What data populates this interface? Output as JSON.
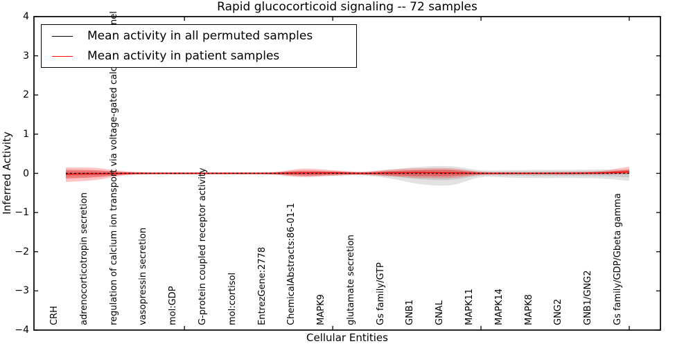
{
  "chart_data": {
    "type": "line",
    "title": "Rapid glucocorticoid signaling -- 72 samples",
    "xlabel": "Cellular Entities",
    "ylabel": "Inferred Activity",
    "ylim": [
      -4,
      4
    ],
    "yticks": [
      4,
      3,
      2,
      1,
      0,
      -1,
      -2,
      -3,
      -4
    ],
    "grid": false,
    "legend_position": "upper left",
    "categories": [
      "CRH",
      "adrenocorticotropin secretion",
      "regulation of calcium ion transport via voltage-gated calcium channel",
      "vasopressin secretion",
      "mol:GDP",
      "G-protein coupled receptor activity",
      "mol:cortisol",
      "EntrezGene:2778",
      "ChemicalAbstracts:86-01-1",
      "MAPK9",
      "glutamate secretion",
      "Gs family/GTP",
      "GNB1",
      "GNAL",
      "MAPK11",
      "MAPK14",
      "MAPK8",
      "GNG2",
      "GNB1/GNG2",
      "Gs family/GDP/Gbeta gamma"
    ],
    "series": [
      {
        "name": "Mean activity in all permuted samples",
        "color": "#000000",
        "line_style": "dashed",
        "values": [
          0,
          0,
          0,
          0,
          0,
          0,
          0,
          0,
          0,
          0,
          0,
          0,
          0,
          0,
          0,
          0,
          0,
          0,
          0,
          0
        ],
        "band_upper": [
          0.06,
          0.05,
          0.03,
          0.03,
          0.03,
          0.03,
          0.03,
          0.04,
          0.05,
          0.05,
          0.04,
          0.1,
          0.17,
          0.18,
          0.08,
          0.08,
          0.09,
          0.09,
          0.1,
          0.09
        ],
        "band_lower": [
          0.08,
          0.06,
          0.04,
          0.03,
          0.03,
          0.03,
          0.03,
          0.04,
          0.06,
          0.06,
          0.05,
          0.14,
          0.28,
          0.3,
          0.1,
          0.11,
          0.12,
          0.12,
          0.13,
          0.19
        ]
      },
      {
        "name": "Mean activity in patient samples",
        "color": "#ff0000",
        "line_style": "solid",
        "values": [
          -0.02,
          -0.01,
          0,
          0,
          0,
          0,
          0,
          0,
          0.01,
          0.01,
          0,
          0.01,
          0.02,
          0.01,
          0,
          0,
          0,
          0,
          0.01,
          0.04
        ],
        "band_upper": [
          0.15,
          0.14,
          0.05,
          0.025,
          0.025,
          0.025,
          0.025,
          0.03,
          0.12,
          0.08,
          0.04,
          0.1,
          0.13,
          0.13,
          0.04,
          0.03,
          0.03,
          0.04,
          0.06,
          0.17
        ],
        "band_lower": [
          0.22,
          0.17,
          0.05,
          0.025,
          0.025,
          0.025,
          0.025,
          0.03,
          0.1,
          0.06,
          0.04,
          0.08,
          0.12,
          0.12,
          0.04,
          0.03,
          0.03,
          0.03,
          0.03,
          0.02
        ],
        "band_inner_upper": [
          0.09,
          0.08,
          0.03,
          0.015,
          0.015,
          0.015,
          0.015,
          0.018,
          0.07,
          0.05,
          0.022,
          0.06,
          0.08,
          0.08,
          0.022,
          0.018,
          0.018,
          0.022,
          0.035,
          0.1
        ],
        "band_inner_lower": [
          0.13,
          0.1,
          0.03,
          0.015,
          0.015,
          0.015,
          0.015,
          0.018,
          0.06,
          0.035,
          0.022,
          0.05,
          0.07,
          0.07,
          0.022,
          0.018,
          0.018,
          0.018,
          0.018,
          0.012
        ]
      }
    ]
  },
  "colors": {
    "patient_band": "rgba(255,40,40,0.28)",
    "patient_band_inner": "rgba(225,25,25,0.40)",
    "permuted_band": "rgba(125,125,125,0.22)",
    "frame": "#000000",
    "background": "#ffffff"
  }
}
